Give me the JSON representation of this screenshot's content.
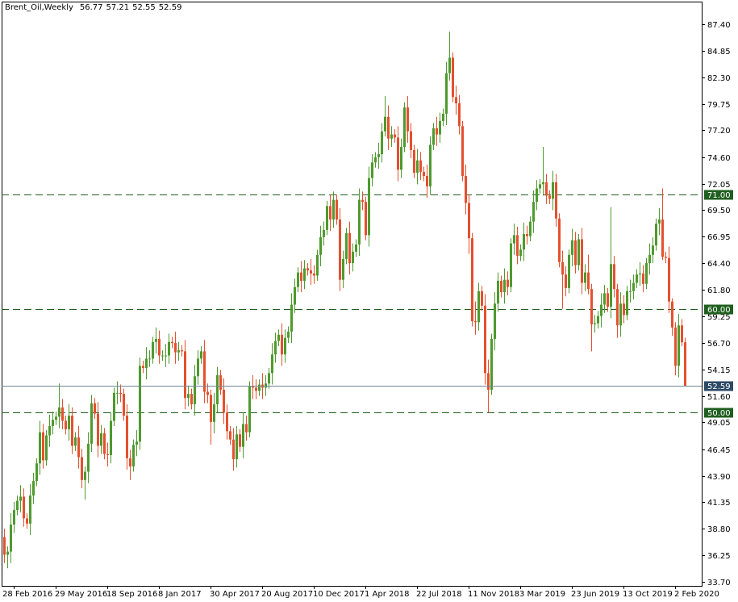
{
  "chart_data": {
    "type": "candlestick",
    "title": "Brent_Oil,Weekly",
    "up_color": "#4e9a2e",
    "down_color": "#e5502e",
    "ylim": [
      33.3,
      89.6
    ],
    "yticks": [
      {
        "value": 87.4,
        "label": "87.40"
      },
      {
        "value": 84.85,
        "label": "84.85"
      },
      {
        "value": 82.3,
        "label": "82.30"
      },
      {
        "value": 79.75,
        "label": "79.75"
      },
      {
        "value": 77.2,
        "label": "77.20"
      },
      {
        "value": 74.6,
        "label": "74.60"
      },
      {
        "value": 72.05,
        "label": "72.05"
      },
      {
        "value": 69.5,
        "label": "69.50"
      },
      {
        "value": 66.95,
        "label": "66.95"
      },
      {
        "value": 64.4,
        "label": "64.40"
      },
      {
        "value": 61.8,
        "label": "61.80"
      },
      {
        "value": 59.25,
        "label": "59.25"
      },
      {
        "value": 56.7,
        "label": "56.70"
      },
      {
        "value": 54.15,
        "label": "54.15"
      },
      {
        "value": 51.6,
        "label": "51.60"
      },
      {
        "value": 49.05,
        "label": "49.05"
      },
      {
        "value": 46.45,
        "label": "46.45"
      },
      {
        "value": 43.9,
        "label": "43.90"
      },
      {
        "value": 41.35,
        "label": "41.35"
      },
      {
        "value": 38.8,
        "label": "38.80"
      },
      {
        "value": 36.25,
        "label": "36.25"
      },
      {
        "value": 33.7,
        "label": "33.70"
      }
    ],
    "levels": [
      {
        "value": 71,
        "label": "71.00",
        "color": "#1f5f1f"
      },
      {
        "value": 60,
        "label": "60.00",
        "color": "#1f5f1f"
      },
      {
        "value": 50,
        "label": "50.00",
        "color": "#1f5f1f"
      }
    ],
    "last_price": {
      "value": 52.59,
      "label": "52.59",
      "color": "#6f8796",
      "label_color": "#2d4a66"
    },
    "categories": [
      null,
      null,
      null,
      "28 Feb 2016",
      null,
      null,
      null,
      null,
      null,
      null,
      null,
      null,
      null,
      null,
      null,
      null,
      "29 May 2016",
      null,
      null,
      null,
      null,
      null,
      null,
      null,
      null,
      null,
      null,
      null,
      null,
      null,
      null,
      null,
      "18 Sep 2016",
      null,
      null,
      null,
      null,
      null,
      null,
      null,
      null,
      null,
      null,
      null,
      null,
      null,
      null,
      null,
      "8 Jan 2017",
      null,
      null,
      null,
      null,
      null,
      null,
      null,
      null,
      null,
      null,
      null,
      null,
      null,
      null,
      null,
      "30 Apr 2017",
      null,
      null,
      null,
      null,
      null,
      null,
      null,
      null,
      null,
      null,
      null,
      null,
      null,
      null,
      null,
      "20 Aug 2017",
      null,
      null,
      null,
      null,
      null,
      null,
      null,
      null,
      null,
      null,
      null,
      null,
      null,
      null,
      null,
      "10 Dec 2017",
      null,
      null,
      null,
      null,
      null,
      null,
      null,
      null,
      null,
      null,
      null,
      null,
      null,
      null,
      null,
      "1 Apr 2018",
      null,
      null,
      null,
      null,
      null,
      null,
      null,
      null,
      null,
      null,
      null,
      null,
      null,
      null,
      null,
      "22 Jul 2018",
      null,
      null,
      null,
      null,
      null,
      null,
      null,
      null,
      null,
      null,
      null,
      null,
      null,
      null,
      null,
      "11 Nov 2018",
      null,
      null,
      null,
      null,
      null,
      null,
      null,
      null,
      null,
      null,
      null,
      null,
      null,
      null,
      null,
      "3 Mar 2019",
      null,
      null,
      null,
      null,
      null,
      null,
      null,
      null,
      null,
      null,
      null,
      null,
      null,
      null,
      null,
      "23 Jun 2019",
      null,
      null,
      null,
      null,
      null,
      null,
      null,
      null,
      null,
      null,
      null,
      null,
      null,
      null,
      null,
      "13 Oct 2019",
      null,
      null,
      null,
      null,
      null,
      null,
      null,
      null,
      null,
      null,
      null,
      null,
      null,
      null,
      null,
      "2 Feb 2020",
      null,
      null,
      null
    ],
    "open": [
      38.0,
      36.3,
      36.6,
      39.2,
      40.6,
      41.5,
      41.9,
      39.8,
      39.3,
      42.0,
      43.4,
      45.1,
      48.1,
      45.4,
      47.8,
      48.7,
      49.3,
      49.6,
      50.5,
      49.2,
      48.4,
      49.7,
      46.8,
      47.6,
      45.7,
      43.5,
      44.3,
      47.0,
      50.9,
      49.9,
      46.8,
      48.0,
      46.0,
      45.9,
      49.2,
      51.9,
      51.9,
      51.8,
      49.7,
      45.6,
      44.8,
      46.9,
      47.2,
      54.5,
      54.3,
      55.2,
      55.2,
      56.8,
      57.1,
      55.5,
      55.5,
      55.5,
      56.8,
      56.7,
      55.8,
      56.0,
      55.9,
      51.4,
      51.8,
      50.8,
      53.5,
      55.2,
      55.9,
      52.0,
      51.7,
      49.1,
      50.8,
      53.6,
      52.2,
      50.0,
      48.2,
      47.4,
      45.5,
      47.9,
      46.7,
      48.9,
      48.1,
      52.5,
      52.4,
      52.1,
      52.7,
      52.4,
      52.8,
      53.8,
      55.6,
      56.9,
      57.5,
      55.6,
      57.2,
      57.8,
      60.4,
      62.1,
      63.5,
      62.7,
      63.9,
      63.7,
      63.4,
      63.2,
      65.2,
      66.9,
      67.6,
      69.9,
      68.6,
      70.5,
      68.6,
      62.8,
      64.8,
      67.3,
      64.4,
      65.5,
      66.2,
      70.5,
      70.3,
      67.1,
      72.6,
      74.1,
      74.6,
      74.9,
      77.1,
      78.5,
      76.4,
      76.8,
      76.5,
      73.4,
      75.6,
      79.4,
      77.1,
      75.3,
      73.1,
      74.3,
      73.2,
      72.8,
      71.8,
      75.8,
      77.4,
      76.8,
      78.1,
      78.8,
      82.7,
      84.2,
      80.4,
      79.8,
      77.6,
      72.8,
      70.2,
      66.8,
      58.8,
      58.7,
      61.7,
      60.3,
      53.8,
      52.2,
      57.1,
      60.5,
      62.7,
      61.6,
      62.8,
      62.1,
      66.3,
      67.1,
      65.1,
      65.7,
      67.2,
      67.0,
      68.4,
      70.3,
      71.6,
      72.0,
      72.2,
      70.9,
      70.6,
      72.2,
      68.7,
      64.5,
      63.3,
      62.0,
      65.2,
      66.6,
      64.2,
      66.7,
      62.5,
      63.5,
      61.9,
      58.5,
      58.6,
      59.3,
      60.4,
      61.5,
      60.2,
      64.3,
      61.9,
      58.4,
      60.5,
      59.4,
      61.7,
      61.7,
      62.5,
      63.3,
      63.4,
      62.4,
      64.4,
      65.2,
      66.1,
      68.2,
      68.6,
      65.0,
      64.9,
      60.7,
      58.2,
      54.5,
      58.4,
      56.77
    ],
    "high": [
      38.8,
      37.1,
      40.3,
      41.4,
      42.0,
      43.0,
      42.7,
      40.3,
      43.1,
      44.2,
      45.6,
      49.2,
      48.9,
      48.3,
      49.8,
      50.1,
      50.1,
      52.8,
      51.3,
      49.7,
      50.8,
      50.5,
      48.1,
      48.7,
      46.5,
      44.8,
      48.1,
      51.7,
      51.4,
      51.0,
      48.8,
      48.5,
      47.1,
      50.0,
      52.4,
      53.0,
      52.7,
      52.3,
      50.8,
      46.4,
      47.4,
      48.3,
      55.3,
      55.0,
      56.3,
      56.0,
      57.3,
      58.2,
      57.9,
      56.0,
      56.6,
      57.6,
      57.3,
      57.8,
      56.8,
      56.5,
      57.0,
      52.6,
      52.3,
      54.6,
      56.0,
      56.4,
      57.0,
      52.8,
      52.2,
      51.9,
      54.4,
      54.1,
      53.3,
      50.8,
      48.7,
      48.5,
      48.7,
      48.4,
      50.0,
      49.7,
      53.0,
      53.6,
      53.2,
      53.2,
      53.8,
      53.6,
      54.3,
      56.7,
      57.7,
      58.0,
      58.6,
      58.0,
      58.3,
      61.5,
      62.9,
      64.0,
      64.6,
      64.7,
      64.4,
      64.8,
      64.2,
      65.7,
      68.0,
      68.4,
      70.4,
      71.0,
      71.3,
      71.0,
      69.7,
      65.6,
      67.8,
      68.4,
      66.3,
      66.7,
      71.6,
      71.3,
      70.8,
      73.7,
      74.9,
      75.1,
      76.0,
      77.9,
      80.5,
      79.6,
      77.6,
      77.3,
      77.6,
      76.4,
      79.9,
      80.5,
      77.9,
      75.8,
      75.4,
      75.1,
      73.7,
      73.9,
      76.6,
      77.9,
      78.5,
      78.9,
      79.3,
      83.8,
      86.7,
      84.7,
      81.5,
      80.6,
      78.1,
      73.9,
      71.0,
      67.3,
      60.7,
      62.5,
      62.2,
      61.4,
      55.1,
      57.6,
      61.6,
      63.5,
      63.2,
      63.9,
      63.6,
      66.8,
      68.2,
      67.9,
      66.2,
      68.3,
      68.0,
      68.9,
      71.4,
      72.4,
      72.5,
      75.6,
      73.0,
      71.4,
      73.3,
      73.0,
      69.2,
      65.6,
      64.1,
      65.7,
      67.7,
      67.4,
      67.2,
      67.8,
      64.3,
      65.2,
      62.4,
      59.4,
      59.8,
      61.5,
      62.3,
      62.0,
      69.8,
      65.1,
      62.4,
      61.6,
      61.3,
      62.2,
      62.8,
      63.3,
      63.8,
      64.5,
      64.2,
      64.9,
      66.3,
      66.9,
      68.7,
      69.7,
      71.6,
      65.5,
      66.0,
      61.0,
      58.7,
      59.5,
      59.0,
      57.21
    ],
    "low": [
      35.5,
      35.0,
      35.5,
      38.4,
      40.1,
      40.4,
      39.0,
      38.8,
      38.2,
      41.2,
      42.9,
      44.0,
      44.6,
      44.9,
      46.7,
      47.9,
      48.8,
      48.5,
      48.4,
      47.9,
      47.3,
      46.0,
      46.3,
      44.6,
      42.7,
      41.6,
      43.2,
      46.2,
      49.4,
      45.7,
      46.0,
      45.5,
      44.8,
      45.1,
      48.7,
      50.8,
      51.0,
      49.2,
      44.5,
      43.5,
      44.3,
      45.8,
      46.4,
      53.8,
      53.2,
      54.4,
      54.7,
      55.7,
      54.7,
      55.0,
      54.4,
      54.7,
      56.2,
      54.7,
      55.0,
      55.4,
      50.3,
      50.6,
      50.3,
      49.7,
      52.7,
      54.7,
      50.9,
      50.9,
      46.9,
      48.0,
      50.0,
      51.7,
      48.9,
      47.4,
      46.9,
      44.4,
      44.7,
      46.2,
      45.6,
      47.3,
      47.6,
      51.3,
      51.3,
      51.6,
      51.3,
      51.6,
      52.3,
      52.7,
      54.8,
      56.4,
      54.5,
      54.8,
      56.7,
      56.7,
      59.6,
      61.6,
      61.6,
      61.9,
      63.2,
      62.3,
      62.4,
      62.7,
      64.1,
      66.1,
      67.1,
      67.5,
      67.8,
      68.1,
      61.7,
      62.0,
      64.3,
      63.3,
      63.6,
      65.0,
      65.1,
      69.5,
      66.6,
      66.0,
      71.8,
      73.6,
      73.5,
      74.1,
      76.6,
      75.3,
      75.6,
      76.0,
      72.3,
      72.6,
      75.1,
      76.0,
      74.5,
      72.6,
      72.0,
      72.4,
      72.3,
      70.7,
      71.0,
      75.3,
      75.7,
      76.0,
      77.6,
      77.7,
      82.0,
      79.9,
      78.7,
      76.8,
      72.3,
      69.1,
      65.3,
      58.3,
      57.5,
      57.9,
      59.8,
      52.7,
      50.0,
      51.7,
      56.0,
      59.7,
      61.1,
      60.5,
      61.3,
      61.6,
      65.2,
      64.3,
      64.6,
      64.6,
      66.2,
      66.5,
      67.3,
      69.5,
      71.1,
      70.9,
      70.1,
      70.1,
      69.5,
      67.9,
      64.0,
      60.0,
      61.2,
      61.5,
      64.1,
      63.4,
      63.7,
      61.4,
      61.7,
      61.4,
      55.9,
      57.7,
      58.1,
      58.2,
      59.6,
      59.7,
      59.1,
      61.1,
      57.2,
      57.3,
      58.6,
      58.9,
      60.6,
      60.9,
      62.0,
      62.2,
      61.6,
      61.9,
      63.3,
      64.4,
      65.6,
      67.1,
      64.7,
      64.4,
      59.6,
      57.4,
      53.6,
      53.4,
      56.4,
      52.55
    ],
    "close": [
      36.3,
      36.6,
      39.2,
      40.6,
      41.5,
      41.9,
      39.8,
      39.3,
      42.0,
      43.4,
      45.1,
      48.1,
      45.4,
      47.8,
      48.7,
      49.3,
      49.6,
      50.5,
      49.2,
      48.4,
      49.7,
      46.8,
      47.6,
      45.7,
      43.5,
      44.3,
      47.0,
      50.9,
      49.9,
      46.8,
      48.0,
      46.0,
      45.9,
      49.2,
      51.9,
      51.9,
      51.8,
      49.7,
      45.6,
      44.8,
      46.9,
      47.2,
      54.5,
      54.3,
      55.2,
      55.2,
      56.8,
      57.1,
      55.5,
      55.5,
      55.5,
      56.8,
      56.7,
      55.8,
      56.0,
      55.9,
      51.4,
      51.8,
      50.8,
      53.5,
      55.2,
      55.9,
      52.0,
      51.7,
      49.1,
      50.8,
      53.6,
      52.2,
      50.0,
      48.2,
      47.4,
      45.5,
      47.9,
      46.7,
      48.9,
      48.1,
      52.5,
      52.4,
      52.1,
      52.7,
      52.4,
      52.8,
      53.8,
      55.6,
      56.9,
      57.5,
      55.6,
      57.2,
      57.8,
      60.4,
      62.1,
      63.5,
      62.7,
      63.9,
      63.7,
      63.4,
      63.2,
      65.2,
      66.9,
      67.6,
      69.9,
      68.6,
      70.5,
      68.6,
      62.8,
      64.8,
      67.3,
      64.4,
      65.5,
      66.2,
      70.5,
      70.3,
      67.1,
      72.6,
      74.1,
      74.6,
      74.9,
      77.1,
      78.5,
      76.4,
      76.8,
      76.5,
      73.4,
      75.6,
      79.4,
      77.1,
      75.3,
      73.1,
      74.3,
      73.2,
      72.8,
      71.8,
      75.8,
      77.4,
      76.8,
      78.1,
      78.8,
      82.7,
      84.2,
      80.4,
      79.8,
      77.6,
      72.8,
      70.2,
      66.8,
      58.8,
      58.7,
      61.7,
      60.3,
      53.8,
      52.2,
      57.1,
      60.5,
      62.7,
      61.6,
      62.8,
      62.1,
      66.3,
      67.1,
      65.1,
      65.7,
      67.2,
      67.0,
      68.4,
      70.3,
      71.6,
      72.0,
      72.2,
      70.9,
      70.6,
      72.2,
      68.7,
      64.5,
      63.3,
      62.0,
      65.2,
      66.6,
      64.2,
      66.7,
      62.5,
      63.5,
      61.9,
      58.5,
      58.6,
      59.3,
      60.4,
      61.5,
      60.2,
      64.3,
      61.9,
      58.4,
      60.5,
      59.4,
      61.7,
      61.7,
      62.5,
      63.3,
      63.4,
      62.4,
      64.4,
      65.2,
      66.1,
      68.2,
      68.6,
      65.0,
      64.9,
      60.7,
      58.2,
      54.5,
      58.4,
      56.77,
      52.59
    ]
  }
}
